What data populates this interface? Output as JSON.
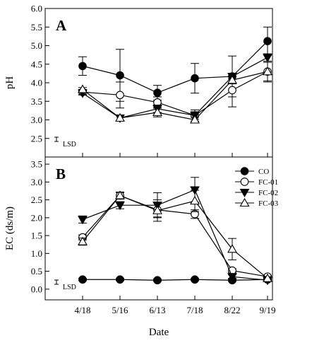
{
  "chart_data": [
    {
      "type": "line",
      "panel_label": "A",
      "xlabel": "",
      "ylabel": "pH",
      "ylim": [
        2.0,
        6.0
      ],
      "yticks": [
        "2.5",
        "3.0",
        "3.5",
        "4.0",
        "4.5",
        "5.0",
        "5.5",
        "6.0"
      ],
      "x": [
        "4/18",
        "5/16",
        "6/13",
        "7/18",
        "8/22",
        "9/19"
      ],
      "lsd_label": "LSD",
      "series": [
        {
          "name": "CO",
          "marker": "circle-filled",
          "values": [
            4.45,
            4.2,
            3.73,
            4.12,
            4.17,
            5.12
          ],
          "err": [
            0.25,
            0.7,
            0.2,
            0.4,
            0.55,
            0.38
          ]
        },
        {
          "name": "FC-01",
          "marker": "circle-open",
          "values": [
            3.75,
            3.67,
            3.47,
            3.12,
            3.8,
            4.3
          ],
          "err": [
            0.07,
            0.35,
            0.15,
            0.15,
            0.45,
            0.28
          ]
        },
        {
          "name": "FC-02",
          "marker": "triangle-down-filled",
          "values": [
            3.72,
            3.05,
            3.3,
            3.12,
            4.17,
            4.68
          ],
          "err": [
            0.05,
            0.07,
            0.1,
            0.1,
            0.07,
            0.1
          ]
        },
        {
          "name": "FC-03",
          "marker": "triangle-up-open",
          "values": [
            3.82,
            3.05,
            3.2,
            3.0,
            4.07,
            4.3
          ],
          "err": [
            0.05,
            0.07,
            0.12,
            0.07,
            0.1,
            0.25
          ]
        }
      ]
    },
    {
      "type": "line",
      "panel_label": "B",
      "xlabel": "Date",
      "ylabel": "EC (ds/m)",
      "ylim": [
        -0.3,
        3.7
      ],
      "yticks": [
        "0.0",
        "0.5",
        "1.0",
        "1.5",
        "2.0",
        "2.5",
        "3.0",
        "3.5"
      ],
      "x": [
        "4/18",
        "5/16",
        "6/13",
        "7/18",
        "8/22",
        "9/19"
      ],
      "lsd_label": "LSD",
      "legend_position": "top-right",
      "series": [
        {
          "name": "CO",
          "marker": "circle-filled",
          "values": [
            0.27,
            0.27,
            0.25,
            0.27,
            0.25,
            0.27
          ],
          "err": [
            0.03,
            0.03,
            0.03,
            0.03,
            0.03,
            0.03
          ]
        },
        {
          "name": "FC-01",
          "marker": "circle-open",
          "values": [
            1.45,
            2.62,
            2.22,
            2.1,
            0.52,
            0.35
          ],
          "err": [
            0.07,
            0.08,
            0.2,
            0.12,
            0.05,
            0.03
          ]
        },
        {
          "name": "FC-02",
          "marker": "triangle-down-filled",
          "values": [
            1.95,
            2.35,
            2.35,
            2.78,
            0.35,
            0.25
          ],
          "err": [
            0.1,
            0.1,
            0.35,
            0.35,
            0.05,
            0.03
          ]
        },
        {
          "name": "FC-03",
          "marker": "triangle-up-open",
          "values": [
            1.33,
            2.62,
            2.2,
            2.47,
            1.12,
            0.3
          ],
          "err": [
            0.1,
            0.1,
            0.3,
            0.3,
            0.3,
            0.05
          ]
        }
      ]
    }
  ]
}
